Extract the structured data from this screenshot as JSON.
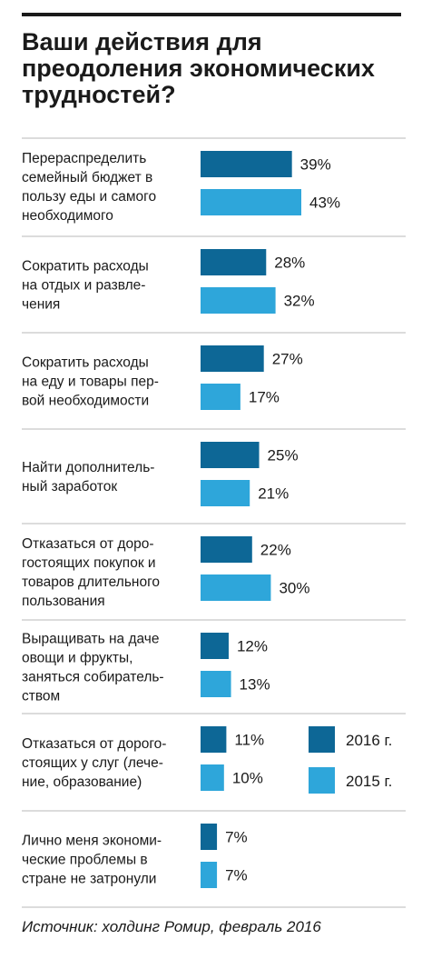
{
  "chart_data": {
    "type": "bar",
    "title": "Ваши действия для преодоления экономических трудностей?",
    "categories": [
      "Перераспределить семейный бюджет в пользу еды и самого необходимого",
      "Сократить расходы на отдых и развлечения",
      "Сократить расходы на еду и товары первой необходимости",
      "Найти дополнительный заработок",
      "Отказаться от дорогостоящих покупок и товаров длительного пользования",
      "Выращивать на даче овощи и фрукты, заняться собирательством",
      "Отказаться от дорогостоящих у слуг (лечение, образование)",
      "Лично меня экономические проблемы в стране не затронули"
    ],
    "category_lines": [
      [
        "Перераспределить",
        "семейный бюджет в",
        "пользу еды и самого",
        "необходимого"
      ],
      [
        "Сократить расходы",
        "на отдых и развле-",
        "чения"
      ],
      [
        "Сократить расходы",
        "на еду и товары пер-",
        "вой необходимости"
      ],
      [
        "Найти дополнитель-",
        "ный заработок"
      ],
      [
        "Отказаться от доро-",
        "гостоящих покупок и",
        "товаров длительного",
        "пользования"
      ],
      [
        "Выращивать на даче",
        "овощи и фрукты,",
        "заняться собиратель-",
        "ством"
      ],
      [
        "Отказаться от дорого-",
        "стоящих у слуг (лече-",
        "ние, образование)"
      ],
      [
        "Лично меня экономи-",
        "ческие проблемы в",
        "стране не затронули"
      ]
    ],
    "series": [
      {
        "name": "2016 г.",
        "color": "#0d6796",
        "values": [
          39,
          28,
          27,
          25,
          22,
          12,
          11,
          7
        ]
      },
      {
        "name": "2015 г.",
        "color": "#2ea6da",
        "values": [
          43,
          32,
          17,
          21,
          30,
          13,
          10,
          7
        ]
      }
    ],
    "value_suffix": "%",
    "xlim": [
      0,
      43
    ],
    "legend_position": "right"
  },
  "source": "Источник: холдинг Ромир, февраль 2016"
}
